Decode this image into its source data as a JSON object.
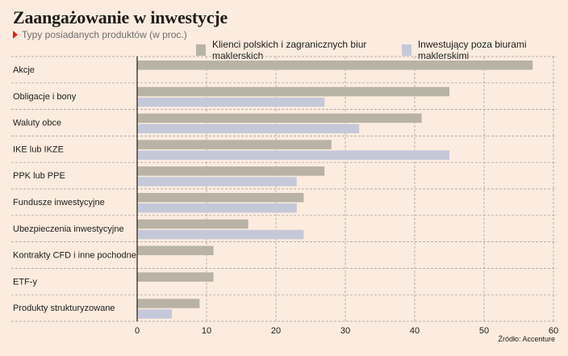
{
  "header": {
    "title": "Zaangażowanie w inwestycje",
    "subtitle": "Typy posiadanych produktów (w proc.)"
  },
  "source": "Źródło: Accenture",
  "colors": {
    "series1": "#b8b3a5",
    "series2": "#c5c8d9",
    "grid": "#9a9a9a",
    "background": "#fcecdf"
  },
  "chart_data": {
    "type": "bar",
    "orientation": "horizontal",
    "categories": [
      "Akcje",
      "Obligacje i bony",
      "Waluty obce",
      "IKE lub IKZE",
      "PPK lub PPE",
      "Fundusze inwestycyjne",
      "Ubezpieczenia inwestycyjne",
      "Kontrakty CFD i inne pochodne",
      "ETF-y",
      "Produkty strukturyzowane"
    ],
    "series": [
      {
        "name": "Klienci polskich i zagranicznych biur maklerskich",
        "values": [
          57,
          45,
          41,
          28,
          27,
          24,
          16,
          11,
          11,
          9
        ]
      },
      {
        "name": "Inwestujący poza biurami maklerskimi",
        "values": [
          null,
          27,
          32,
          45,
          23,
          23,
          24,
          null,
          null,
          5
        ]
      }
    ],
    "xticks": [
      0,
      10,
      20,
      30,
      40,
      50,
      60
    ],
    "xlim": [
      0,
      60
    ],
    "grid": true,
    "legend": "top-right"
  }
}
